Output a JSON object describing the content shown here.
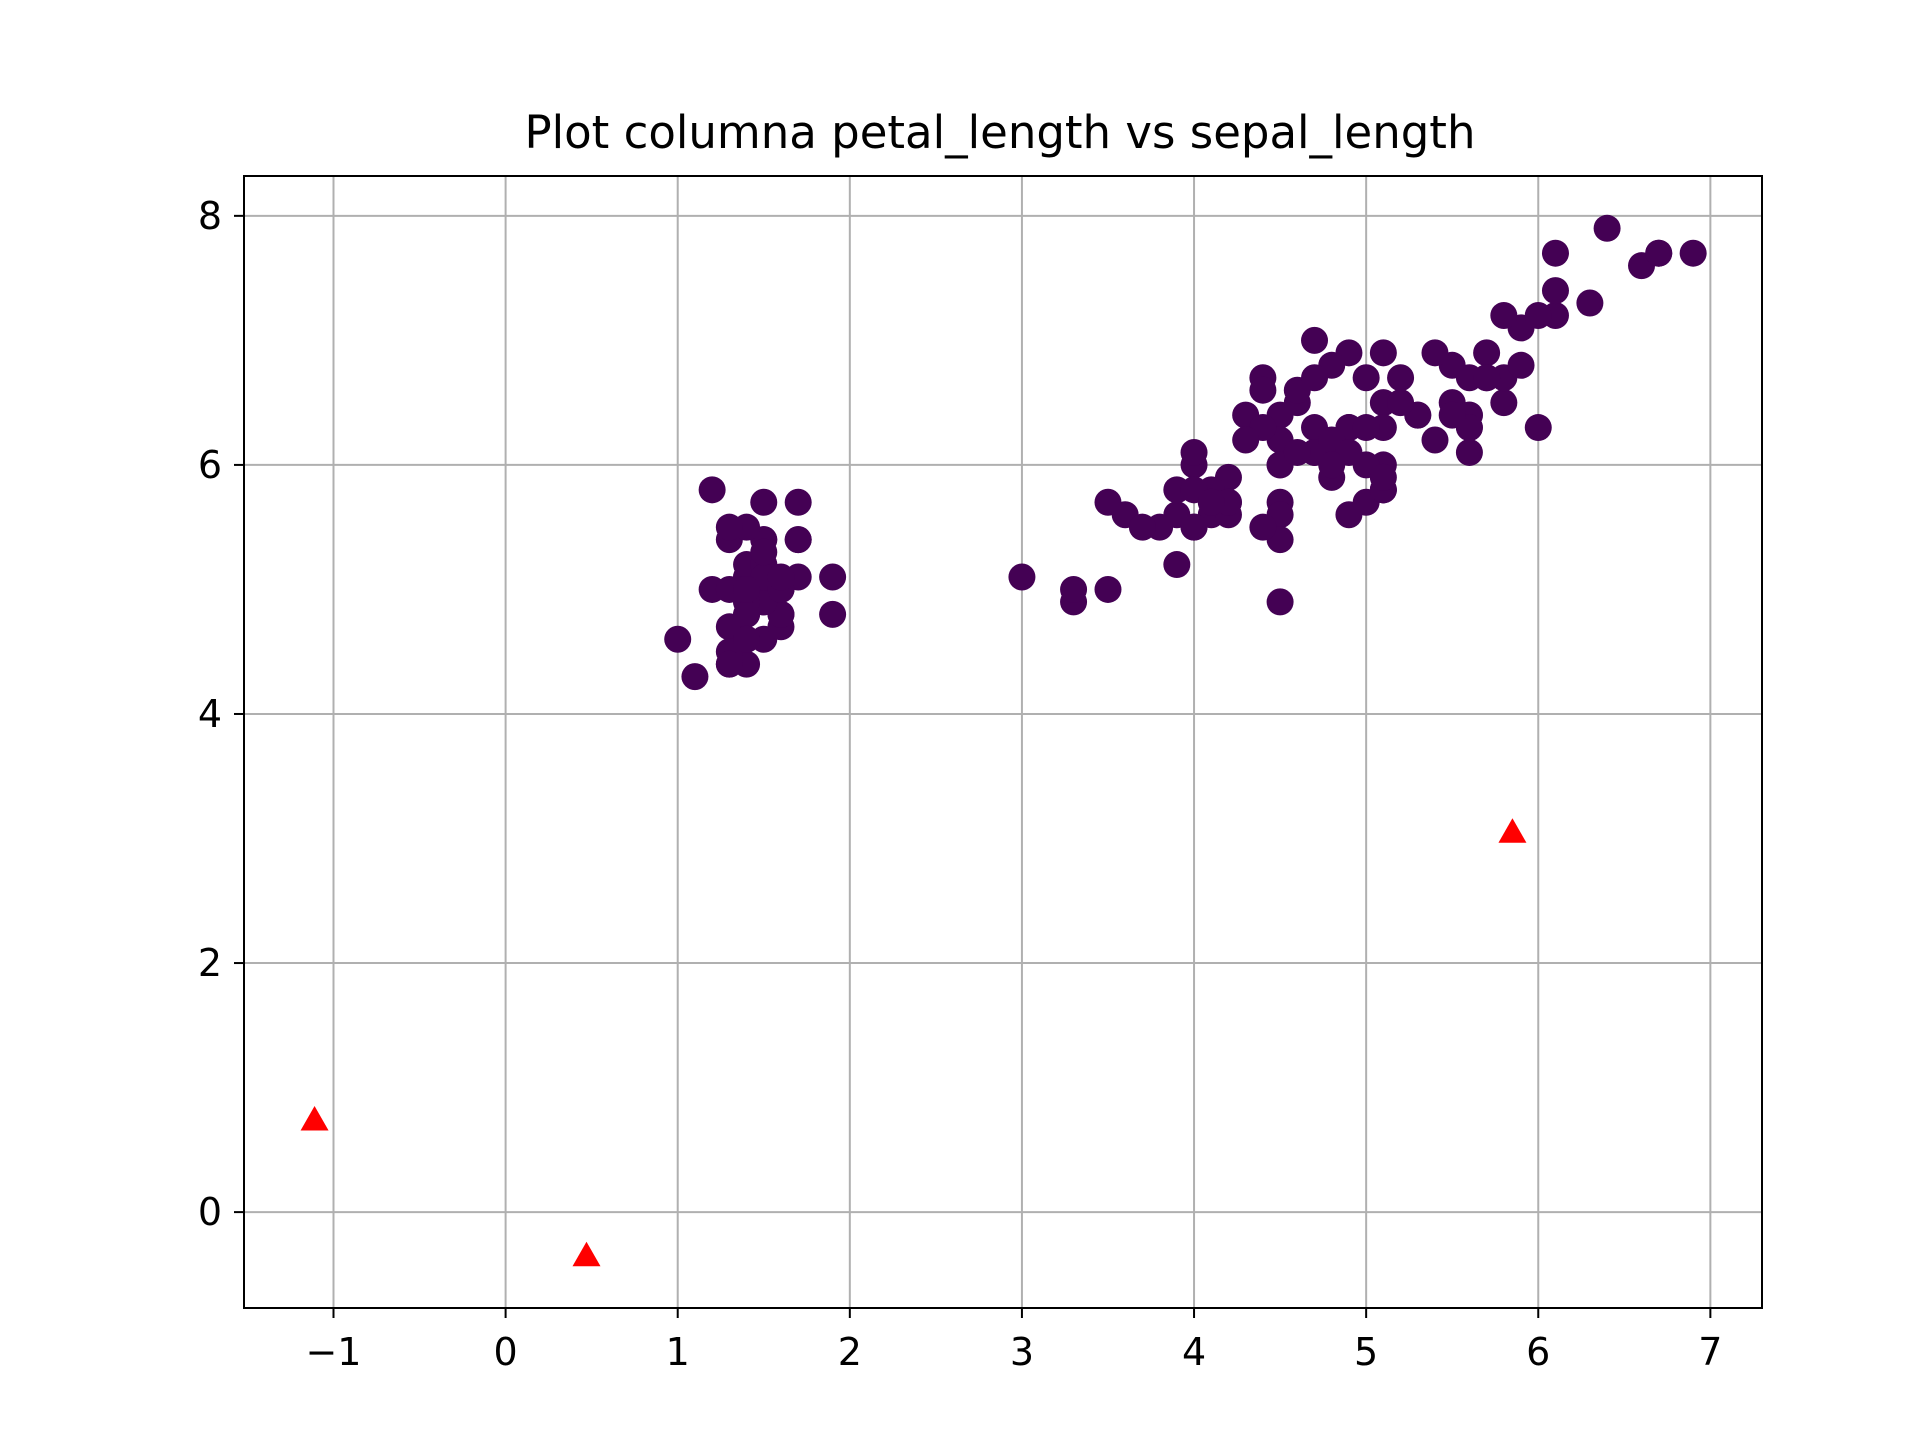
{
  "chart_data": {
    "type": "scatter",
    "title": "Plot columna petal_length vs sepal_length",
    "xlabel": "",
    "ylabel": "",
    "xlim": [
      -1.52,
      7.3
    ],
    "ylim": [
      -0.77,
      8.32
    ],
    "grid": true,
    "x_ticks": [
      -1,
      0,
      1,
      2,
      3,
      4,
      5,
      6,
      7
    ],
    "x_tick_labels": [
      "−1",
      "0",
      "1",
      "2",
      "3",
      "4",
      "5",
      "6",
      "7"
    ],
    "y_ticks": [
      0,
      2,
      4,
      6,
      8
    ],
    "y_tick_labels": [
      "0",
      "2",
      "4",
      "6",
      "8"
    ],
    "colors": {
      "points": "#440154",
      "centroids": "#ff0000",
      "grid": "#b0b0b0",
      "axes": "#000000"
    },
    "series": [
      {
        "marker": "circle",
        "color": "#440154",
        "points": [
          [
            1.4,
            5.1
          ],
          [
            1.4,
            4.9
          ],
          [
            1.3,
            4.7
          ],
          [
            1.5,
            4.6
          ],
          [
            1.4,
            5.0
          ],
          [
            1.7,
            5.4
          ],
          [
            1.4,
            4.6
          ],
          [
            1.5,
            5.0
          ],
          [
            1.4,
            4.4
          ],
          [
            1.5,
            4.9
          ],
          [
            1.5,
            5.4
          ],
          [
            1.6,
            4.8
          ],
          [
            1.4,
            4.8
          ],
          [
            1.1,
            4.3
          ],
          [
            1.2,
            5.8
          ],
          [
            1.5,
            5.7
          ],
          [
            1.3,
            5.4
          ],
          [
            1.4,
            5.1
          ],
          [
            1.7,
            5.7
          ],
          [
            1.5,
            5.1
          ],
          [
            1.7,
            5.4
          ],
          [
            1.5,
            5.1
          ],
          [
            1.0,
            4.6
          ],
          [
            1.7,
            5.1
          ],
          [
            1.9,
            4.8
          ],
          [
            1.6,
            5.0
          ],
          [
            1.6,
            5.0
          ],
          [
            1.5,
            5.2
          ],
          [
            1.4,
            5.2
          ],
          [
            1.6,
            4.7
          ],
          [
            1.6,
            4.8
          ],
          [
            1.5,
            5.4
          ],
          [
            1.5,
            5.2
          ],
          [
            1.4,
            5.5
          ],
          [
            1.5,
            4.9
          ],
          [
            1.2,
            5.0
          ],
          [
            1.3,
            5.5
          ],
          [
            1.4,
            4.9
          ],
          [
            1.3,
            4.4
          ],
          [
            1.5,
            5.1
          ],
          [
            1.3,
            5.0
          ],
          [
            1.3,
            4.5
          ],
          [
            1.3,
            4.4
          ],
          [
            1.6,
            5.0
          ],
          [
            1.9,
            5.1
          ],
          [
            1.4,
            4.8
          ],
          [
            1.6,
            5.1
          ],
          [
            1.4,
            4.6
          ],
          [
            1.5,
            5.3
          ],
          [
            1.4,
            5.0
          ],
          [
            4.7,
            7.0
          ],
          [
            4.5,
            6.4
          ],
          [
            4.9,
            6.9
          ],
          [
            4.0,
            5.5
          ],
          [
            4.6,
            6.5
          ],
          [
            4.5,
            5.7
          ],
          [
            4.7,
            6.3
          ],
          [
            3.3,
            4.9
          ],
          [
            4.6,
            6.6
          ],
          [
            3.9,
            5.2
          ],
          [
            3.5,
            5.0
          ],
          [
            4.2,
            5.9
          ],
          [
            4.0,
            6.0
          ],
          [
            4.7,
            6.1
          ],
          [
            3.6,
            5.6
          ],
          [
            4.4,
            6.7
          ],
          [
            4.5,
            5.6
          ],
          [
            4.1,
            5.8
          ],
          [
            4.5,
            6.2
          ],
          [
            3.9,
            5.6
          ],
          [
            4.8,
            5.9
          ],
          [
            4.0,
            6.1
          ],
          [
            4.9,
            6.3
          ],
          [
            4.7,
            6.1
          ],
          [
            4.3,
            6.4
          ],
          [
            4.4,
            6.6
          ],
          [
            4.8,
            6.8
          ],
          [
            5.0,
            6.7
          ],
          [
            4.5,
            6.0
          ],
          [
            3.5,
            5.7
          ],
          [
            3.8,
            5.5
          ],
          [
            3.7,
            5.5
          ],
          [
            3.9,
            5.8
          ],
          [
            5.1,
            6.0
          ],
          [
            4.5,
            5.4
          ],
          [
            4.5,
            6.0
          ],
          [
            4.7,
            6.7
          ],
          [
            4.4,
            6.3
          ],
          [
            4.1,
            5.6
          ],
          [
            4.0,
            5.5
          ],
          [
            4.4,
            5.5
          ],
          [
            4.6,
            6.1
          ],
          [
            4.0,
            5.8
          ],
          [
            3.3,
            5.0
          ],
          [
            4.2,
            5.6
          ],
          [
            4.2,
            5.7
          ],
          [
            4.2,
            5.7
          ],
          [
            4.3,
            6.2
          ],
          [
            3.0,
            5.1
          ],
          [
            4.1,
            5.7
          ],
          [
            6.0,
            6.3
          ],
          [
            5.1,
            5.8
          ],
          [
            5.9,
            7.1
          ],
          [
            5.6,
            6.3
          ],
          [
            5.8,
            6.5
          ],
          [
            6.6,
            7.6
          ],
          [
            4.5,
            4.9
          ],
          [
            6.3,
            7.3
          ],
          [
            5.8,
            6.7
          ],
          [
            6.1,
            7.2
          ],
          [
            5.1,
            6.5
          ],
          [
            5.3,
            6.4
          ],
          [
            5.5,
            6.8
          ],
          [
            5.0,
            5.7
          ],
          [
            5.1,
            5.8
          ],
          [
            5.3,
            6.4
          ],
          [
            5.5,
            6.5
          ],
          [
            6.7,
            7.7
          ],
          [
            6.9,
            7.7
          ],
          [
            5.0,
            6.0
          ],
          [
            5.7,
            6.9
          ],
          [
            4.9,
            5.6
          ],
          [
            6.7,
            7.7
          ],
          [
            4.9,
            6.3
          ],
          [
            5.7,
            6.7
          ],
          [
            6.0,
            7.2
          ],
          [
            4.8,
            6.2
          ],
          [
            4.9,
            6.1
          ],
          [
            5.6,
            6.4
          ],
          [
            5.8,
            7.2
          ],
          [
            6.1,
            7.4
          ],
          [
            6.4,
            7.9
          ],
          [
            5.6,
            6.4
          ],
          [
            5.1,
            6.3
          ],
          [
            5.6,
            6.1
          ],
          [
            6.1,
            7.7
          ],
          [
            5.6,
            6.3
          ],
          [
            5.5,
            6.4
          ],
          [
            4.8,
            6.0
          ],
          [
            5.4,
            6.9
          ],
          [
            5.6,
            6.7
          ],
          [
            5.1,
            6.9
          ],
          [
            5.1,
            5.8
          ],
          [
            5.9,
            6.8
          ],
          [
            5.7,
            6.7
          ],
          [
            5.2,
            6.7
          ],
          [
            5.0,
            6.3
          ],
          [
            5.2,
            6.5
          ],
          [
            5.4,
            6.2
          ],
          [
            5.1,
            5.9
          ]
        ]
      },
      {
        "marker": "triangle",
        "color": "#ff0000",
        "points": [
          [
            -1.11,
            0.74
          ],
          [
            0.47,
            -0.35
          ],
          [
            5.85,
            3.05
          ]
        ]
      }
    ]
  }
}
